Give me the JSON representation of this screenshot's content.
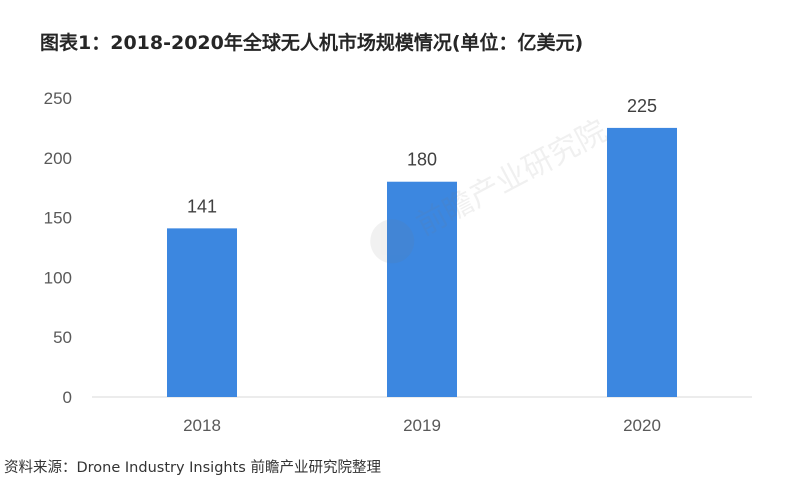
{
  "chart_data": {
    "type": "bar",
    "title": "图表1：2018-2020年全球无人机市场规模情况(单位：亿美元)",
    "categories": [
      "2018",
      "2019",
      "2020"
    ],
    "values": [
      141,
      180,
      225
    ],
    "data_labels": [
      "141",
      "180",
      "225"
    ],
    "ylim": [
      0,
      250
    ],
    "yticks": [
      0,
      50,
      100,
      150,
      200,
      250
    ],
    "ytick_labels": [
      "0",
      "50",
      "100",
      "150",
      "200",
      "250"
    ],
    "xlabel": "",
    "ylabel": "",
    "grid": false,
    "legend": "none",
    "bar_color": "#3c87e0"
  },
  "source": "资料来源：Drone Industry Insights 前瞻产业研究院整理",
  "watermark": {
    "text": "前瞻产业研究院",
    "icon": "qianzhan-logo-icon"
  }
}
